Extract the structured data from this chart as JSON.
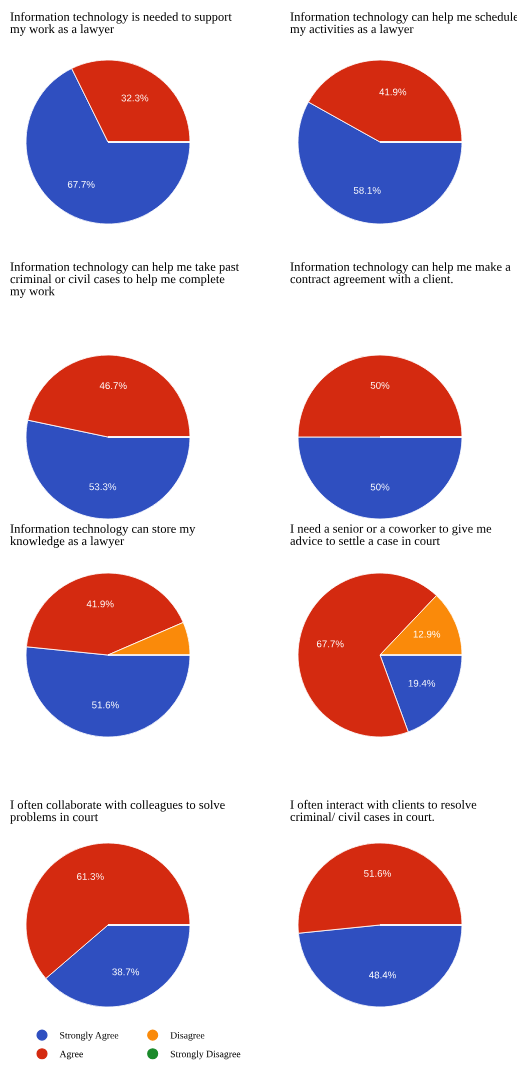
{
  "chart_data": [
    {
      "type": "pie",
      "title": "Information technology is needed to support my work as a lawyer",
      "values": [
        67.7,
        32.3,
        0,
        0
      ],
      "value_labels": [
        "67.7%",
        "32.3%",
        null,
        null
      ],
      "colors": [
        "#2f4fc0",
        "#d42a10",
        "#fa8a0a",
        "#1a8a2a"
      ]
    },
    {
      "type": "pie",
      "title": "Information technology can help me schedule my activities as a lawyer",
      "values": [
        58.1,
        41.9,
        0,
        0
      ],
      "value_labels": [
        "58.1%",
        "41.9%",
        null,
        null
      ],
      "colors": [
        "#2f4fc0",
        "#d42a10",
        "#fa8a0a",
        "#1a8a2a"
      ]
    },
    {
      "type": "pie",
      "title": "Information technology can help me take past criminal or civil cases to help me complete my work",
      "values": [
        53.3,
        46.7,
        0,
        0
      ],
      "value_labels": [
        "53.3%",
        "46.7%",
        null,
        null
      ],
      "colors": [
        "#2f4fc0",
        "#d42a10",
        "#fa8a0a",
        "#1a8a2a"
      ]
    },
    {
      "type": "pie",
      "title": "Information technology can help me make a contract agreement with a client.",
      "values": [
        50,
        50,
        0,
        0
      ],
      "value_labels": [
        "50%",
        "50%",
        null,
        null
      ],
      "colors": [
        "#2f4fc0",
        "#d42a10",
        "#fa8a0a",
        "#1a8a2a"
      ]
    },
    {
      "type": "pie",
      "title": "Information technology can store my knowledge as a lawyer",
      "values": [
        51.6,
        41.9,
        6.5,
        0
      ],
      "value_labels": [
        "51.6%",
        "41.9%",
        null,
        null
      ],
      "colors": [
        "#2f4fc0",
        "#d42a10",
        "#fa8a0a",
        "#1a8a2a"
      ]
    },
    {
      "type": "pie",
      "title": "I need a senior or a coworker to give me advice to settle a case in court",
      "values": [
        19.4,
        67.7,
        12.9,
        0
      ],
      "value_labels": [
        "19.4%",
        "67.7%",
        "12.9%",
        null
      ],
      "colors": [
        "#2f4fc0",
        "#d42a10",
        "#fa8a0a",
        "#1a8a2a"
      ]
    },
    {
      "type": "pie",
      "title": "I often collaborate with colleagues to solve problems in court",
      "categories": [
        "Strongly Agree",
        "Agree",
        "Disagree",
        "Strongly Disagree"
      ],
      "values": [
        38.7,
        61.3,
        0,
        0
      ],
      "value_labels": [
        "38.7%",
        "61.3%",
        null,
        null
      ],
      "colors": [
        "#2f4fc0",
        "#d42a10",
        "#fa8a0a",
        "#1a8a2a"
      ],
      "legend": "bottom"
    },
    {
      "type": "pie",
      "title": "I often interact with clients to resolve criminal/ civil cases in court.",
      "values": [
        48.4,
        51.6,
        0,
        0
      ],
      "value_labels": [
        "48.4%",
        "51.6%",
        null,
        null
      ],
      "colors": [
        "#2f4fc0",
        "#d42a10",
        "#fa8a0a",
        "#1a8a2a"
      ]
    }
  ]
}
